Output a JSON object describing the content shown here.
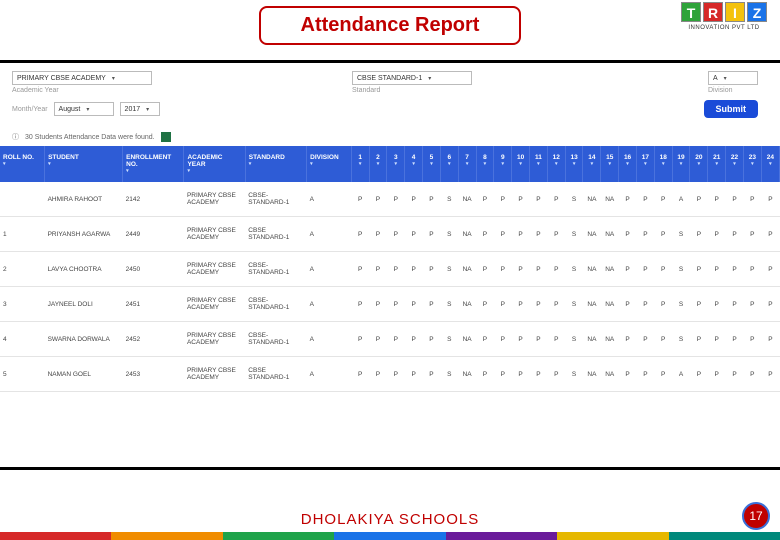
{
  "header": {
    "title": "Attendance Report",
    "logo_letters": [
      "T",
      "R",
      "I",
      "Z"
    ],
    "logo_colors": [
      "#2fa33a",
      "#d62828",
      "#f4c20d",
      "#1a73e8"
    ],
    "logo_sub": "INNOVATION PVT LTD"
  },
  "filters": {
    "school": {
      "value": "PRIMARY CBSE ACADEMY",
      "label": "Academic Year"
    },
    "standard": {
      "value": "CBSE STANDARD-1",
      "label": "Standard"
    },
    "division": {
      "value": "A",
      "label": "Division"
    },
    "month_label": "Month/Year",
    "month": "August",
    "year": "2017",
    "submit": "Submit"
  },
  "found_text": "30 Students Attendance Data were found.",
  "columns": {
    "roll": "ROLL NO.",
    "student": "STUDENT",
    "enroll": "ENROLLMENT NO.",
    "year": "ACADEMIC YEAR",
    "standard": "STANDARD",
    "division": "DIVISION"
  },
  "day_count": 24,
  "rows": [
    {
      "roll": "",
      "student": "AHMIRA RAHOOT",
      "enroll": "2142",
      "year": "PRIMARY CBSE ACADEMY",
      "standard": "CBSE-STANDARD-1",
      "division": "A",
      "att": [
        "P",
        "P",
        "P",
        "P",
        "P",
        "S",
        "NA",
        "P",
        "P",
        "P",
        "P",
        "P",
        "S",
        "NA",
        "NA",
        "P",
        "P",
        "P",
        "A",
        "P",
        "P",
        "P",
        "P",
        "P"
      ]
    },
    {
      "roll": "1",
      "student": "PRIYANSH AGARWA",
      "enroll": "2449",
      "year": "PRIMARY CBSE ACADEMY",
      "standard": "CBSE STANDARD-1",
      "division": "A",
      "att": [
        "P",
        "P",
        "P",
        "P",
        "P",
        "S",
        "NA",
        "P",
        "P",
        "P",
        "P",
        "P",
        "S",
        "NA",
        "NA",
        "P",
        "P",
        "P",
        "S",
        "P",
        "P",
        "P",
        "P",
        "P"
      ]
    },
    {
      "roll": "2",
      "student": "LAVYA CHOOTRA",
      "enroll": "2450",
      "year": "PRIMARY CBSE ACADEMY",
      "standard": "CBSE-STANDARD-1",
      "division": "A",
      "att": [
        "P",
        "P",
        "P",
        "P",
        "P",
        "S",
        "NA",
        "P",
        "P",
        "P",
        "P",
        "P",
        "S",
        "NA",
        "NA",
        "P",
        "P",
        "P",
        "S",
        "P",
        "P",
        "P",
        "P",
        "P"
      ]
    },
    {
      "roll": "3",
      "student": "JAYNEEL DOLI",
      "enroll": "2451",
      "year": "PRIMARY CBSE ACADEMY",
      "standard": "CBSE-STANDARD-1",
      "division": "A",
      "att": [
        "P",
        "P",
        "P",
        "P",
        "P",
        "S",
        "NA",
        "P",
        "P",
        "P",
        "P",
        "P",
        "S",
        "NA",
        "NA",
        "P",
        "P",
        "P",
        "S",
        "P",
        "P",
        "P",
        "P",
        "P"
      ]
    },
    {
      "roll": "4",
      "student": "SWARNA DORWALA",
      "enroll": "2452",
      "year": "PRIMARY CBSE ACADEMY",
      "standard": "CBSE-STANDARD-1",
      "division": "A",
      "att": [
        "P",
        "P",
        "P",
        "P",
        "P",
        "S",
        "NA",
        "P",
        "P",
        "P",
        "P",
        "P",
        "S",
        "NA",
        "NA",
        "P",
        "P",
        "P",
        "S",
        "P",
        "P",
        "P",
        "P",
        "P"
      ]
    },
    {
      "roll": "5",
      "student": "NAMAN GOEL",
      "enroll": "2453",
      "year": "PRIMARY CBSE ACADEMY",
      "standard": "CBSE STANDARD-1",
      "division": "A",
      "att": [
        "P",
        "P",
        "P",
        "P",
        "P",
        "S",
        "NA",
        "P",
        "P",
        "P",
        "P",
        "P",
        "S",
        "NA",
        "NA",
        "P",
        "P",
        "P",
        "A",
        "P",
        "P",
        "P",
        "P",
        "P"
      ]
    }
  ],
  "footer": {
    "text": "DHOLAKIYA SCHOOLS",
    "page": "17",
    "bar_colors": [
      "#d62828",
      "#f08c00",
      "#1fa34a",
      "#1a73e8",
      "#6a1b9a",
      "#e6b800",
      "#00897b"
    ]
  }
}
